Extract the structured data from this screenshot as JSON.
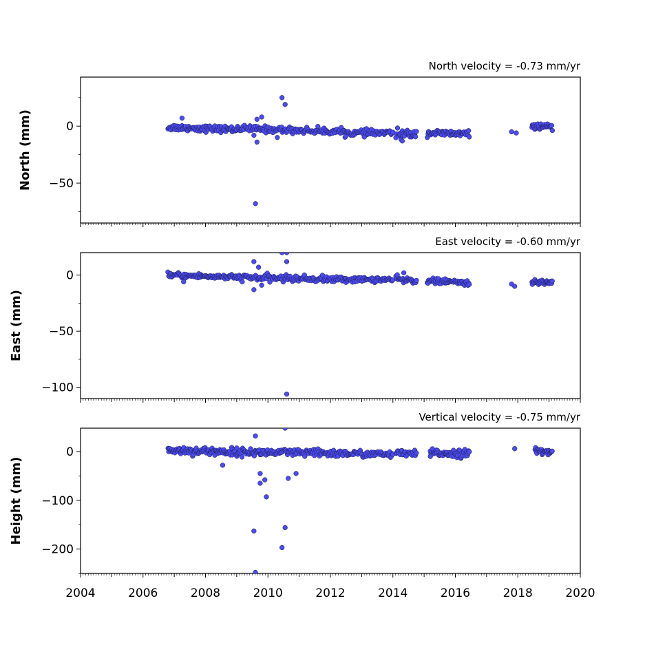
{
  "chart_data": [
    {
      "type": "scatter",
      "title": "North velocity = -0.73 mm/yr",
      "xlabel": "",
      "ylabel": "North (mm)",
      "xlim": [
        2004,
        2020
      ],
      "ylim": [
        -85,
        43
      ],
      "xticks": [
        2004,
        2006,
        2008,
        2010,
        2012,
        2014,
        2016,
        2018,
        2020
      ],
      "yticks": [
        0,
        -50
      ],
      "ytick_labels": [
        "0",
        "−50"
      ],
      "marker_color": "#4b4bf0",
      "grid": false,
      "outliers": [
        [
          2009.6,
          -68
        ],
        [
          2010.45,
          25
        ],
        [
          2010.55,
          19
        ],
        [
          2009.65,
          6
        ],
        [
          2009.8,
          8
        ],
        [
          2007.25,
          7
        ],
        [
          2009.55,
          -8
        ],
        [
          2009.65,
          -14
        ],
        [
          2010.3,
          -10
        ],
        [
          2014.3,
          -13
        ],
        [
          2017.8,
          -5
        ],
        [
          2017.95,
          -6
        ]
      ],
      "segments": [
        {
          "start": 2006.8,
          "end": 2009.0,
          "y_start": -1,
          "y_end": -3,
          "spread": 2.5,
          "n": 95
        },
        {
          "start": 2009.0,
          "end": 2012.5,
          "y_start": -2,
          "y_end": -5,
          "spread": 2.5,
          "n": 140
        },
        {
          "start": 2012.5,
          "end": 2014.0,
          "y_start": -6,
          "y_end": -6,
          "spread": 2.5,
          "n": 60
        },
        {
          "start": 2014.1,
          "end": 2014.75,
          "y_start": -7,
          "y_end": -7,
          "spread": 3.5,
          "n": 30
        },
        {
          "start": 2015.1,
          "end": 2016.45,
          "y_start": -6,
          "y_end": -7,
          "spread": 2.5,
          "n": 60
        },
        {
          "start": 2018.45,
          "end": 2019.1,
          "y_start": 0,
          "y_end": -1,
          "spread": 2.0,
          "n": 35
        }
      ]
    },
    {
      "type": "scatter",
      "title": "East velocity = -0.60 mm/yr",
      "xlabel": "",
      "ylabel": "East (mm)",
      "xlim": [
        2004,
        2020
      ],
      "ylim": [
        -110,
        20
      ],
      "xticks": [
        2004,
        2006,
        2008,
        2010,
        2012,
        2014,
        2016,
        2018,
        2020
      ],
      "yticks": [
        0,
        -50,
        -100
      ],
      "ytick_labels": [
        "0",
        "−50",
        "−100"
      ],
      "marker_color": "#4b4bf0",
      "grid": false,
      "outliers": [
        [
          2010.6,
          -106
        ],
        [
          2010.45,
          20
        ],
        [
          2010.6,
          20
        ],
        [
          2009.55,
          12
        ],
        [
          2010.6,
          12
        ],
        [
          2009.7,
          7
        ],
        [
          2009.55,
          -13
        ],
        [
          2009.8,
          -9
        ],
        [
          2007.3,
          -6
        ],
        [
          2014.35,
          2
        ],
        [
          2017.9,
          -10
        ],
        [
          2017.8,
          -8
        ]
      ],
      "segments": [
        {
          "start": 2006.8,
          "end": 2009.0,
          "y_start": 0,
          "y_end": -2,
          "spread": 2.0,
          "n": 95
        },
        {
          "start": 2009.0,
          "end": 2012.5,
          "y_start": -2,
          "y_end": -4,
          "spread": 2.5,
          "n": 140
        },
        {
          "start": 2012.5,
          "end": 2014.0,
          "y_start": -4,
          "y_end": -4,
          "spread": 2.0,
          "n": 60
        },
        {
          "start": 2014.1,
          "end": 2014.75,
          "y_start": -4,
          "y_end": -5,
          "spread": 2.5,
          "n": 30
        },
        {
          "start": 2015.1,
          "end": 2016.45,
          "y_start": -5,
          "y_end": -7,
          "spread": 2.0,
          "n": 60
        },
        {
          "start": 2018.45,
          "end": 2019.1,
          "y_start": -7,
          "y_end": -6,
          "spread": 2.0,
          "n": 35
        }
      ]
    },
    {
      "type": "scatter",
      "title": "Vertical velocity = -0.75 mm/yr",
      "xlabel": "",
      "ylabel": "Height (mm)",
      "xlim": [
        2004,
        2020
      ],
      "ylim": [
        -250,
        48
      ],
      "xticks": [
        2004,
        2006,
        2008,
        2010,
        2012,
        2014,
        2016,
        2018,
        2020
      ],
      "xtick_labels": [
        "2004",
        "2006",
        "2008",
        "2010",
        "2012",
        "2014",
        "2016",
        "2018",
        "2020"
      ],
      "yticks": [
        0,
        -100,
        -200
      ],
      "ytick_labels": [
        "0",
        "−100",
        "−200"
      ],
      "marker_color": "#4b4bf0",
      "grid": false,
      "outliers": [
        [
          2009.6,
          32
        ],
        [
          2010.55,
          48
        ],
        [
          2009.75,
          -45
        ],
        [
          2009.9,
          -58
        ],
        [
          2009.75,
          -65
        ],
        [
          2009.95,
          -93
        ],
        [
          2010.65,
          -55
        ],
        [
          2010.9,
          -45
        ],
        [
          2009.55,
          -163
        ],
        [
          2010.55,
          -156
        ],
        [
          2010.45,
          -197
        ],
        [
          2009.6,
          -248
        ],
        [
          2008.55,
          -28
        ],
        [
          2017.9,
          6
        ],
        [
          2015.2,
          -10
        ]
      ],
      "segments": [
        {
          "start": 2006.8,
          "end": 2009.0,
          "y_start": 3,
          "y_end": -1,
          "spread": 7,
          "n": 110
        },
        {
          "start": 2009.0,
          "end": 2012.5,
          "y_start": -1,
          "y_end": -4,
          "spread": 7,
          "n": 150
        },
        {
          "start": 2012.5,
          "end": 2014.0,
          "y_start": -4,
          "y_end": -6,
          "spread": 6,
          "n": 60
        },
        {
          "start": 2014.1,
          "end": 2014.75,
          "y_start": -4,
          "y_end": -5,
          "spread": 6,
          "n": 25
        },
        {
          "start": 2015.2,
          "end": 2016.45,
          "y_start": -3,
          "y_end": -4,
          "spread": 7,
          "n": 60
        },
        {
          "start": 2018.55,
          "end": 2019.1,
          "y_start": 2,
          "y_end": -3,
          "spread": 6,
          "n": 30
        }
      ]
    }
  ]
}
